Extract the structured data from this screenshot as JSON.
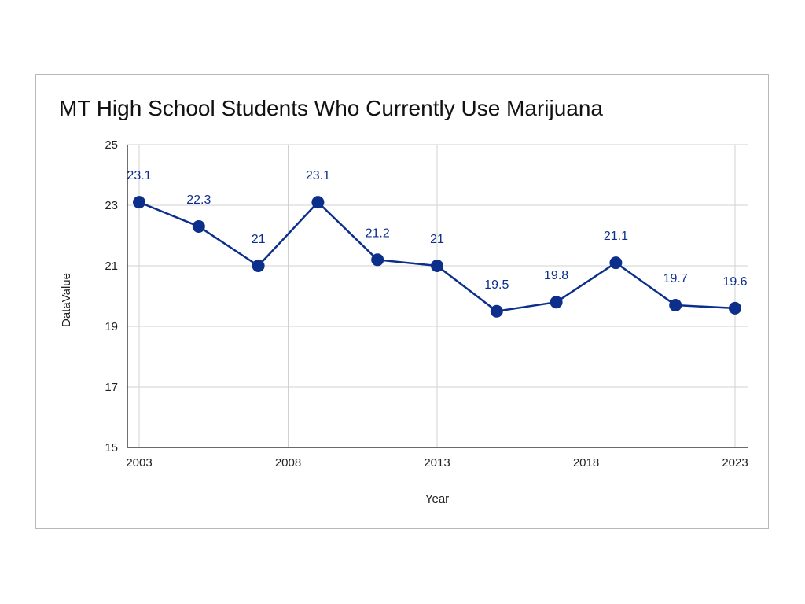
{
  "chart_data": {
    "type": "line",
    "title": "MT High School Students Who Currently Use Marijuana",
    "xlabel": "Year",
    "ylabel": "DataValue",
    "x": [
      2003,
      2005,
      2007,
      2009,
      2011,
      2013,
      2015,
      2017,
      2019,
      2021,
      2023
    ],
    "series": [
      {
        "values": [
          23.1,
          22.3,
          21,
          23.1,
          21.2,
          21,
          19.5,
          19.8,
          21.1,
          19.7,
          19.6
        ],
        "labels": [
          "23.1",
          "22.3",
          "21",
          "23.1",
          "21.2",
          "21",
          "19.5",
          "19.8",
          "21.1",
          "19.7",
          "19.6"
        ],
        "color": "#0b2f8a"
      }
    ],
    "xticks": [
      "2003",
      "2008",
      "2013",
      "2018",
      "2023"
    ],
    "xtick_values": [
      2003,
      2008,
      2013,
      2018,
      2023
    ],
    "yticks": [
      "15",
      "17",
      "19",
      "21",
      "23",
      "25"
    ],
    "ytick_values": [
      15,
      17,
      19,
      21,
      23,
      25
    ],
    "xlim": [
      2003,
      2023
    ],
    "ylim": [
      15,
      25
    ],
    "grid": true,
    "legend": "none",
    "gridline_color": "#d0d0d0",
    "axis_color": "#111111"
  }
}
